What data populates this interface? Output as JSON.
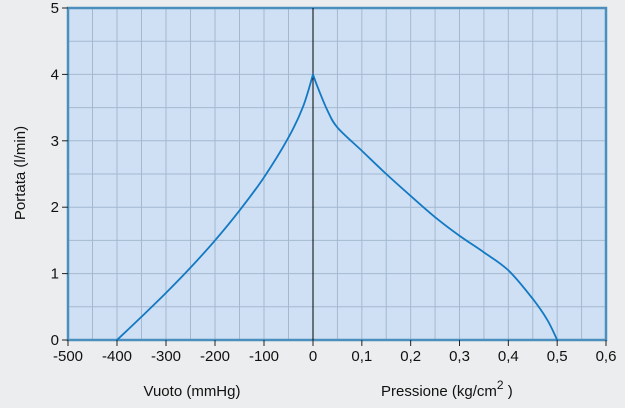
{
  "chart_data": {
    "type": "line",
    "title": "",
    "ylabel": "Portata (l/min)",
    "ylim": [
      0,
      5
    ],
    "y_ticks": [
      "0",
      "1",
      "2",
      "3",
      "4",
      "5"
    ],
    "grid": true,
    "colors": {
      "plot_background": "#cfe0f4",
      "frame": "#4a8fbe",
      "grid": "#a4b9d0",
      "curve": "#1379c3",
      "divider": "#000000"
    },
    "left_axis": {
      "label": "Vuoto (mmHg)",
      "xlim": [
        -500,
        0
      ],
      "ticks": [
        "-500",
        "-400",
        "-300",
        "-200",
        "-100",
        "0"
      ]
    },
    "right_axis": {
      "label_main": "Pressione (kg/cm",
      "label_sup": "2",
      "label_end": " )",
      "xlim": [
        0,
        0.6
      ],
      "ticks": [
        "0,1",
        "0,2",
        "0,3",
        "0,4",
        "0,5",
        "0,6"
      ]
    },
    "series": [
      {
        "segment": "vacuum",
        "x": [
          -400,
          -350,
          -300,
          -250,
          -200,
          -150,
          -100,
          -50,
          -20,
          0
        ],
        "values": [
          0,
          0.35,
          0.71,
          1.09,
          1.5,
          1.95,
          2.45,
          3.05,
          3.52,
          4.0
        ]
      },
      {
        "segment": "pressure",
        "x": [
          0,
          0.01,
          0.03,
          0.05,
          0.1,
          0.15,
          0.2,
          0.25,
          0.3,
          0.35,
          0.4,
          0.45,
          0.48,
          0.5
        ],
        "values": [
          4.0,
          3.8,
          3.45,
          3.2,
          2.85,
          2.5,
          2.17,
          1.85,
          1.57,
          1.32,
          1.05,
          0.62,
          0.3,
          0
        ]
      }
    ]
  }
}
